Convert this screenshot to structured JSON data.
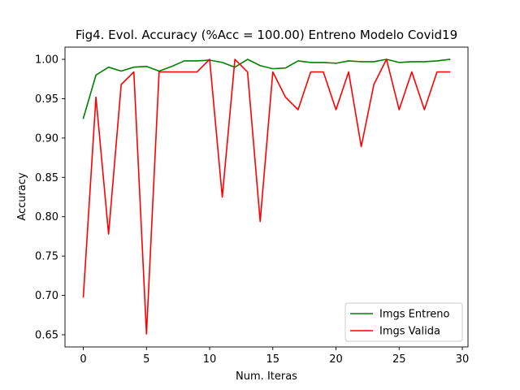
{
  "chart_data": {
    "type": "line",
    "title": "Fig4. Evol. Accuracy (%Acc = 100.00) Entreno Modelo Covid19",
    "xlabel": "Num. Iteras",
    "ylabel": "Accuracy",
    "xlim": [
      -1.45,
      30.45
    ],
    "ylim": [
      0.6345,
      1.0155
    ],
    "xticks": [
      0,
      5,
      10,
      15,
      20,
      25,
      30
    ],
    "xtick_labels": [
      "0",
      "5",
      "10",
      "15",
      "20",
      "25",
      "30"
    ],
    "yticks": [
      0.65,
      0.7,
      0.75,
      0.8,
      0.85,
      0.9,
      0.95,
      1.0
    ],
    "ytick_labels": [
      "0.65",
      "0.70",
      "0.75",
      "0.80",
      "0.85",
      "0.90",
      "0.95",
      "1.00"
    ],
    "grid": false,
    "legend_position": "lower-right",
    "x": [
      0,
      1,
      2,
      3,
      4,
      5,
      6,
      7,
      8,
      9,
      10,
      11,
      12,
      13,
      14,
      15,
      16,
      17,
      18,
      19,
      20,
      21,
      22,
      23,
      24,
      25,
      26,
      27,
      28,
      29
    ],
    "series": [
      {
        "name": "Imgs Entreno",
        "color": "#008000",
        "values": [
          0.925,
          0.98,
          0.99,
          0.985,
          0.99,
          0.991,
          0.985,
          0.991,
          0.998,
          0.998,
          0.999,
          0.996,
          0.99,
          1.0,
          0.992,
          0.988,
          0.989,
          0.998,
          0.996,
          0.996,
          0.995,
          0.998,
          0.997,
          0.997,
          1.0,
          0.996,
          0.997,
          0.997,
          0.998,
          1.0
        ]
      },
      {
        "name": "Imgs Valida",
        "color": "#ff0000",
        "values": [
          0.698,
          0.952,
          0.778,
          0.968,
          0.984,
          0.651,
          0.984,
          0.984,
          0.984,
          0.984,
          1.0,
          0.825,
          1.0,
          0.984,
          0.794,
          0.984,
          0.952,
          0.936,
          0.984,
          0.984,
          0.936,
          0.984,
          0.889,
          0.968,
          1.0,
          0.936,
          0.984,
          0.936,
          0.984,
          0.984
        ]
      }
    ]
  }
}
